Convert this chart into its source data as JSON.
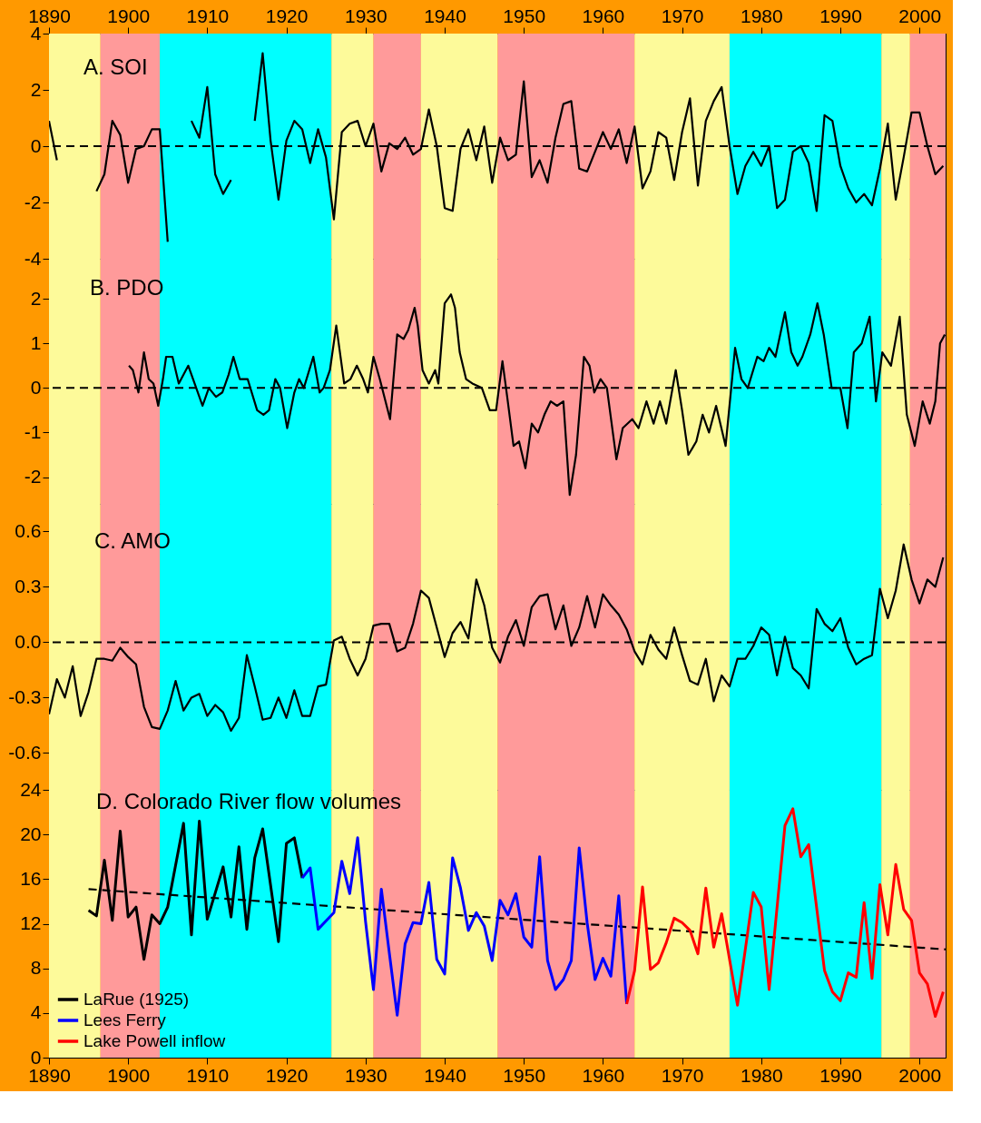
{
  "chart_data": [
    {
      "type": "line",
      "title": "A. SOI",
      "xlim": [
        1890,
        2003.3
      ],
      "x2lim": [
        1890,
        2003.3
      ],
      "x2ticks": [
        1890,
        1900,
        1910,
        1920,
        1930,
        1940,
        1950,
        1960,
        1970,
        1980,
        1990,
        2000
      ],
      "ylim": [
        -4,
        4
      ],
      "yticks": [
        -4,
        -2,
        0,
        2,
        4
      ],
      "tick_labels": "y",
      "x": [
        1890,
        1891,
        1892,
        1893,
        1894,
        1895,
        1896,
        1897,
        1898,
        1899,
        1900,
        1901,
        1902,
        1903,
        1904,
        1905,
        1906,
        1907,
        1908,
        1909,
        1910,
        1911,
        1912,
        1913,
        1914,
        1915,
        1916,
        1917,
        1918,
        1919,
        1920,
        1921,
        1922,
        1923,
        1924,
        1925,
        1926,
        1927,
        1928,
        1929,
        1930,
        1931,
        1932,
        1933,
        1934,
        1935,
        1936,
        1937,
        1938,
        1939,
        1940,
        1941,
        1942,
        1943,
        1944,
        1945,
        1946,
        1947,
        1948,
        1949,
        1950,
        1951,
        1952,
        1953,
        1954,
        1955,
        1956,
        1957,
        1958,
        1959,
        1960,
        1961,
        1962,
        1963,
        1964,
        1965,
        1966,
        1967,
        1968,
        1969,
        1970,
        1971,
        1972,
        1973,
        1974,
        1975,
        1976,
        1977,
        1978,
        1979,
        1980,
        1981,
        1982,
        1983,
        1984,
        1985,
        1986,
        1987,
        1988,
        1989,
        1990,
        1991,
        1992,
        1993,
        1994,
        1995,
        1996,
        1997,
        1998,
        1999,
        2000,
        2001,
        2002,
        2003
      ],
      "series": [
        {
          "color": "#000000",
          "values": [
            0.9,
            -0.5,
            null,
            null,
            null,
            null,
            -1.6,
            -1.0,
            0.9,
            0.4,
            -1.3,
            -0.1,
            0.0,
            0.6,
            0.6,
            -3.4,
            null,
            null,
            0.9,
            0.3,
            2.1,
            -1.0,
            -1.7,
            -1.2,
            null,
            null,
            0.9,
            3.3,
            0.2,
            -1.9,
            0.2,
            0.9,
            0.6,
            -0.6,
            0.6,
            -0.4,
            -2.6,
            0.5,
            0.8,
            0.9,
            0.0,
            0.8,
            -0.9,
            0.1,
            -0.1,
            0.3,
            -0.3,
            -0.1,
            1.3,
            0.0,
            -2.2,
            -2.3,
            -0.1,
            0.6,
            -0.5,
            0.7,
            -1.3,
            0.3,
            -0.5,
            -0.3,
            2.3,
            -1.1,
            -0.5,
            -1.3,
            0.3,
            1.5,
            1.6,
            -0.8,
            -0.9,
            -0.2,
            0.5,
            -0.1,
            0.6,
            -0.6,
            0.7,
            -1.5,
            -0.9,
            0.5,
            0.3,
            -1.2,
            0.5,
            1.7,
            -1.4,
            0.9,
            1.6,
            2.1,
            0.0,
            -1.7,
            -0.7,
            -0.2,
            -0.7,
            0.0,
            -2.2,
            -1.9,
            -0.2,
            0.0,
            -0.6,
            -2.3,
            1.1,
            0.9,
            -0.7,
            -1.5,
            -2.0,
            -1.7,
            -2.1,
            -0.8,
            0.8,
            -1.9,
            -0.4,
            1.2,
            1.2,
            0.0,
            -1.0,
            -0.7
          ]
        }
      ],
      "ref_lines": [
        {
          "axis": "y",
          "value": 0,
          "color": "#000000",
          "line_style": "dashed"
        }
      ],
      "bands": [
        {
          "axis": "x",
          "from": 1890,
          "to": 1896.5,
          "color": "#fdfa9a"
        },
        {
          "axis": "x",
          "from": 1896.5,
          "to": 1904,
          "color": "#ff9a9a"
        },
        {
          "axis": "x",
          "from": 1904,
          "to": 1925.7,
          "color": "#00ffff"
        },
        {
          "axis": "x",
          "from": 1925.7,
          "to": 1931,
          "color": "#fdfa9a"
        },
        {
          "axis": "x",
          "from": 1931,
          "to": 1937,
          "color": "#ff9a9a"
        },
        {
          "axis": "x",
          "from": 1937,
          "to": 1946.7,
          "color": "#fdfa9a"
        },
        {
          "axis": "x",
          "from": 1946.7,
          "to": 1964,
          "color": "#ff9a9a"
        },
        {
          "axis": "x",
          "from": 1964,
          "to": 1976,
          "color": "#fdfa9a"
        },
        {
          "axis": "x",
          "from": 1976,
          "to": 1995.2,
          "color": "#00ffff"
        },
        {
          "axis": "x",
          "from": 1995.2,
          "to": 1998.8,
          "color": "#fdfa9a"
        },
        {
          "axis": "x",
          "from": 1998.8,
          "to": 2003.3,
          "color": "#ff9a9a"
        }
      ]
    },
    {
      "type": "line",
      "title": "B. PDO",
      "xlim": [
        1890,
        2003.3
      ],
      "ylim": [
        -2.6,
        2.9
      ],
      "yticks": [
        -2,
        -1,
        0,
        1,
        2
      ],
      "tick_labels": "y",
      "series": [
        {
          "color": "#000000",
          "x": [
            1900.1,
            1900.6,
            1901.3,
            1902.0,
            1902.6,
            1903.2,
            1903.8,
            1904.4,
            1904.8,
            1905.6,
            1906.4,
            1907.6,
            1908.4,
            1909.4,
            1910.2,
            1911.1,
            1911.9,
            1912.7,
            1913.3,
            1914.1,
            1915.1,
            1916.3,
            1917.1,
            1917.8,
            1918.6,
            1919.2,
            1920.1,
            1921.0,
            1921.6,
            1922.2,
            1923.4,
            1924.2,
            1924.7,
            1925.5,
            1926.3,
            1927.3,
            1928.1,
            1928.9,
            1929.7,
            1930.3,
            1931.0,
            1931.8,
            1933.1,
            1934.0,
            1934.8,
            1935.4,
            1936.2,
            1936.6,
            1937.2,
            1938.0,
            1938.8,
            1939.2,
            1940.0,
            1940.8,
            1941.3,
            1941.9,
            1942.7,
            1943.5,
            1944.7,
            1945.7,
            1946.5,
            1947.3,
            1947.9,
            1948.7,
            1949.4,
            1950.2,
            1951.0,
            1951.8,
            1952.6,
            1953.4,
            1954.2,
            1955.0,
            1955.8,
            1956.6,
            1957.6,
            1958.3,
            1958.9,
            1959.7,
            1960.5,
            1961.7,
            1962.5,
            1963.7,
            1964.5,
            1965.5,
            1966.4,
            1967.2,
            1968.0,
            1969.2,
            1970.0,
            1970.8,
            1971.8,
            1972.6,
            1973.4,
            1974.3,
            1975.5,
            1976.7,
            1977.5,
            1978.3,
            1979.5,
            1980.3,
            1981.0,
            1981.8,
            1983.0,
            1983.8,
            1984.6,
            1985.2,
            1986.2,
            1987.1,
            1987.9,
            1988.9,
            1990.0,
            1990.9,
            1991.7,
            1992.7,
            1993.7,
            1994.5,
            1995.3,
            1996.4,
            1997.5,
            1998.4,
            1999.4,
            2000.4,
            2001.3,
            2002.0,
            2002.6,
            2003.2
          ],
          "values": [
            0.5,
            0.4,
            -0.1,
            0.8,
            0.2,
            0.1,
            -0.4,
            0.2,
            0.7,
            0.7,
            0.1,
            0.5,
            0.1,
            -0.4,
            0.0,
            -0.2,
            -0.1,
            0.3,
            0.7,
            0.2,
            0.2,
            -0.5,
            -0.6,
            -0.5,
            0.2,
            0.0,
            -0.9,
            -0.1,
            0.2,
            0.0,
            0.7,
            -0.1,
            0.0,
            0.4,
            1.4,
            0.1,
            0.2,
            0.5,
            0.2,
            -0.1,
            0.7,
            0.2,
            -0.7,
            1.2,
            1.1,
            1.3,
            1.8,
            1.4,
            0.4,
            0.1,
            0.4,
            0.1,
            1.9,
            2.1,
            1.8,
            0.8,
            0.2,
            0.1,
            0.0,
            -0.5,
            -0.5,
            0.6,
            -0.2,
            -1.3,
            -1.2,
            -1.8,
            -0.8,
            -1.0,
            -0.6,
            -0.3,
            -0.4,
            -0.3,
            -2.4,
            -1.5,
            0.7,
            0.5,
            -0.1,
            0.2,
            0.0,
            -1.6,
            -0.9,
            -0.7,
            -0.9,
            -0.3,
            -0.8,
            -0.3,
            -0.8,
            0.4,
            -0.5,
            -1.5,
            -1.2,
            -0.6,
            -1.0,
            -0.4,
            -1.3,
            0.9,
            0.2,
            0.0,
            0.7,
            0.6,
            0.9,
            0.7,
            1.7,
            0.8,
            0.5,
            0.7,
            1.2,
            1.9,
            1.2,
            0.0,
            0.0,
            -0.9,
            0.8,
            1.0,
            1.6,
            -0.3,
            0.8,
            0.5,
            1.6,
            -0.6,
            -1.3,
            -0.3,
            -0.8,
            -0.3,
            1.0,
            1.2
          ]
        }
      ],
      "ref_lines": [
        {
          "axis": "y",
          "value": 0,
          "color": "#000000",
          "line_style": "dashed"
        }
      ],
      "bands": [
        {
          "axis": "x",
          "from": 1890,
          "to": 1896.5,
          "color": "#fdfa9a"
        },
        {
          "axis": "x",
          "from": 1896.5,
          "to": 1904,
          "color": "#ff9a9a"
        },
        {
          "axis": "x",
          "from": 1904,
          "to": 1925.7,
          "color": "#00ffff"
        },
        {
          "axis": "x",
          "from": 1925.7,
          "to": 1931,
          "color": "#fdfa9a"
        },
        {
          "axis": "x",
          "from": 1931,
          "to": 1937,
          "color": "#ff9a9a"
        },
        {
          "axis": "x",
          "from": 1937,
          "to": 1946.7,
          "color": "#fdfa9a"
        },
        {
          "axis": "x",
          "from": 1946.7,
          "to": 1964,
          "color": "#ff9a9a"
        },
        {
          "axis": "x",
          "from": 1964,
          "to": 1976,
          "color": "#fdfa9a"
        },
        {
          "axis": "x",
          "from": 1976,
          "to": 1995.2,
          "color": "#00ffff"
        },
        {
          "axis": "x",
          "from": 1995.2,
          "to": 1998.8,
          "color": "#fdfa9a"
        },
        {
          "axis": "x",
          "from": 1998.8,
          "to": 2003.3,
          "color": "#ff9a9a"
        }
      ]
    },
    {
      "type": "line",
      "title": "C. AMO",
      "xlim": [
        1890,
        2003.3
      ],
      "ylim": [
        -0.8,
        0.75
      ],
      "yticks": [
        -0.6,
        -0.3,
        {
          "value": 0,
          "label": "0.0"
        },
        0.3,
        0.6
      ],
      "tick_labels": "y",
      "x": [
        1890,
        1891,
        1892,
        1893,
        1894,
        1895,
        1896,
        1897,
        1898,
        1899,
        1900,
        1901,
        1902,
        1903,
        1904,
        1905,
        1906,
        1907,
        1908,
        1909,
        1910,
        1911,
        1912,
        1913,
        1914,
        1915,
        1916,
        1917,
        1918,
        1919,
        1920,
        1921,
        1922,
        1923,
        1924,
        1925,
        1926,
        1927,
        1928,
        1929,
        1930,
        1931,
        1932,
        1933,
        1934,
        1935,
        1936,
        1937,
        1938,
        1939,
        1940,
        1941,
        1942,
        1943,
        1944,
        1945,
        1946,
        1947,
        1948,
        1949,
        1950,
        1951,
        1952,
        1953,
        1954,
        1955,
        1956,
        1957,
        1958,
        1959,
        1960,
        1961,
        1962,
        1963,
        1964,
        1965,
        1966,
        1967,
        1968,
        1969,
        1970,
        1971,
        1972,
        1973,
        1974,
        1975,
        1976,
        1977,
        1978,
        1979,
        1980,
        1981,
        1982,
        1983,
        1984,
        1985,
        1986,
        1987,
        1988,
        1989,
        1990,
        1991,
        1992,
        1993,
        1994,
        1995,
        1996,
        1997,
        1998,
        1999,
        2000,
        2001,
        2002,
        2003
      ],
      "series": [
        {
          "color": "#000000",
          "values": [
            -0.39,
            -0.2,
            -0.3,
            -0.13,
            -0.4,
            -0.27,
            -0.09,
            -0.09,
            -0.1,
            -0.03,
            -0.08,
            -0.12,
            -0.35,
            -0.46,
            -0.47,
            -0.37,
            -0.21,
            -0.37,
            -0.3,
            -0.28,
            -0.4,
            -0.34,
            -0.38,
            -0.48,
            -0.41,
            -0.07,
            -0.24,
            -0.42,
            -0.41,
            -0.3,
            -0.41,
            -0.26,
            -0.4,
            -0.4,
            -0.24,
            -0.23,
            0.01,
            0.03,
            -0.09,
            -0.18,
            -0.09,
            0.09,
            0.1,
            0.1,
            -0.05,
            -0.03,
            0.1,
            0.28,
            0.24,
            0.08,
            -0.08,
            0.05,
            0.11,
            0.02,
            0.34,
            0.2,
            -0.03,
            -0.11,
            0.03,
            0.12,
            -0.02,
            0.19,
            0.25,
            0.26,
            0.07,
            0.2,
            -0.02,
            0.08,
            0.25,
            0.08,
            0.26,
            0.2,
            0.15,
            0.07,
            -0.05,
            -0.12,
            0.04,
            -0.04,
            -0.09,
            0.08,
            -0.07,
            -0.21,
            -0.23,
            -0.09,
            -0.32,
            -0.18,
            -0.24,
            -0.09,
            -0.09,
            -0.02,
            0.08,
            0.04,
            -0.18,
            0.03,
            -0.14,
            -0.18,
            -0.25,
            0.18,
            0.1,
            0.06,
            0.13,
            -0.03,
            -0.12,
            -0.09,
            -0.07,
            0.29,
            0.13,
            0.28,
            0.53,
            0.34,
            0.21,
            0.34,
            0.3,
            0.46
          ]
        }
      ],
      "ref_lines": [
        {
          "axis": "y",
          "value": 0,
          "color": "#000000",
          "line_style": "dashed"
        }
      ],
      "bands": [
        {
          "axis": "x",
          "from": 1890,
          "to": 1896.5,
          "color": "#fdfa9a"
        },
        {
          "axis": "x",
          "from": 1896.5,
          "to": 1904,
          "color": "#ff9a9a"
        },
        {
          "axis": "x",
          "from": 1904,
          "to": 1925.7,
          "color": "#00ffff"
        },
        {
          "axis": "x",
          "from": 1925.7,
          "to": 1931,
          "color": "#fdfa9a"
        },
        {
          "axis": "x",
          "from": 1931,
          "to": 1937,
          "color": "#ff9a9a"
        },
        {
          "axis": "x",
          "from": 1937,
          "to": 1946.7,
          "color": "#fdfa9a"
        },
        {
          "axis": "x",
          "from": 1946.7,
          "to": 1964,
          "color": "#ff9a9a"
        },
        {
          "axis": "x",
          "from": 1964,
          "to": 1976,
          "color": "#fdfa9a"
        },
        {
          "axis": "x",
          "from": 1976,
          "to": 1995.2,
          "color": "#00ffff"
        },
        {
          "axis": "x",
          "from": 1995.2,
          "to": 1998.8,
          "color": "#fdfa9a"
        },
        {
          "axis": "x",
          "from": 1998.8,
          "to": 2003.3,
          "color": "#ff9a9a"
        }
      ]
    },
    {
      "type": "line",
      "title": "D. Colorado River flow volumes",
      "xlim": [
        1890,
        2003.3
      ],
      "xticks": [
        1890,
        1900,
        1910,
        1920,
        1930,
        1940,
        1950,
        1960,
        1970,
        1980,
        1990,
        2000
      ],
      "ylim": [
        0,
        24
      ],
      "yticks": [
        0,
        4,
        8,
        12,
        16,
        20,
        24
      ],
      "legend": "bottom left",
      "series": [
        {
          "name": "LaRue (1925)",
          "color": "#000000",
          "x": [
            1895,
            1896,
            1897,
            1898,
            1899,
            1900,
            1901,
            1902,
            1903,
            1904,
            1905,
            1907,
            1908,
            1909,
            1910,
            1912,
            1913,
            1914,
            1915,
            1916,
            1917,
            1919,
            1920,
            1921,
            1922
          ],
          "values": [
            13.2,
            12.7,
            17.7,
            12.3,
            20.3,
            12.6,
            13.5,
            8.8,
            12.8,
            12.0,
            13.5,
            21.0,
            11.0,
            21.2,
            12.4,
            17.1,
            12.6,
            18.9,
            11.5,
            17.9,
            20.5,
            10.4,
            19.2,
            19.7,
            16.1
          ]
        },
        {
          "name": "Lees Ferry",
          "color": "#0000ff",
          "x": [
            1922,
            1923,
            1924,
            1926,
            1927,
            1928,
            1929,
            1930,
            1931,
            1932,
            1933,
            1934,
            1935,
            1936,
            1937,
            1938,
            1939,
            1940,
            1941,
            1942,
            1943,
            1944,
            1945,
            1946,
            1947,
            1948,
            1949,
            1950,
            1951,
            1952,
            1953,
            1954,
            1955,
            1956,
            1957,
            1958,
            1959,
            1960,
            1961,
            1962,
            1963
          ],
          "values": [
            16.1,
            17.0,
            11.5,
            13.0,
            17.6,
            14.7,
            19.7,
            12.2,
            6.1,
            15.1,
            9.4,
            3.8,
            10.2,
            12.1,
            12.0,
            15.7,
            8.8,
            7.5,
            17.9,
            15.2,
            11.4,
            13.0,
            11.8,
            8.7,
            14.1,
            12.8,
            14.7,
            10.8,
            9.9,
            18.0,
            8.7,
            6.1,
            7.0,
            8.7,
            18.8,
            12.1,
            7.0,
            8.9,
            7.3,
            14.5,
            4.8
          ]
        },
        {
          "name": "Lake Powell inflow",
          "color": "#ff0000",
          "x": [
            1963,
            1964,
            1965,
            1966,
            1967,
            1968,
            1969,
            1970,
            1971,
            1972,
            1973,
            1974,
            1975,
            1977,
            1979,
            1980,
            1981,
            1983,
            1984,
            1985,
            1986,
            1988,
            1989,
            1990,
            1991,
            1992,
            1993,
            1994,
            1995,
            1996,
            1997,
            1998,
            1999,
            2000,
            2001,
            2002,
            2003
          ],
          "values": [
            4.8,
            7.8,
            15.3,
            7.9,
            8.5,
            10.3,
            12.5,
            12.1,
            11.4,
            9.3,
            15.2,
            9.9,
            12.9,
            4.7,
            14.8,
            13.5,
            6.1,
            20.8,
            22.3,
            18.0,
            19.1,
            7.8,
            5.9,
            5.1,
            7.6,
            7.2,
            13.9,
            7.1,
            15.5,
            11.0,
            17.3,
            13.3,
            12.3,
            7.6,
            6.6,
            3.7,
            5.9
          ]
        },
        {
          "type": "line",
          "color": "#000000",
          "line_style": "dashed",
          "x": [
            1895,
            2003.3
          ],
          "values": [
            15.1,
            9.7
          ]
        }
      ],
      "bands": [
        {
          "axis": "x",
          "from": 1890,
          "to": 1896.5,
          "color": "#fdfa9a"
        },
        {
          "axis": "x",
          "from": 1896.5,
          "to": 1904,
          "color": "#ff9a9a"
        },
        {
          "axis": "x",
          "from": 1904,
          "to": 1925.7,
          "color": "#00ffff"
        },
        {
          "axis": "x",
          "from": 1925.7,
          "to": 1931,
          "color": "#fdfa9a"
        },
        {
          "axis": "x",
          "from": 1931,
          "to": 1937,
          "color": "#ff9a9a"
        },
        {
          "axis": "x",
          "from": 1937,
          "to": 1946.7,
          "color": "#fdfa9a"
        },
        {
          "axis": "x",
          "from": 1946.7,
          "to": 1964,
          "color": "#ff9a9a"
        },
        {
          "axis": "x",
          "from": 1964,
          "to": 1976,
          "color": "#fdfa9a"
        },
        {
          "axis": "x",
          "from": 1976,
          "to": 1995.2,
          "color": "#00ffff"
        },
        {
          "axis": "x",
          "from": 1995.2,
          "to": 1998.8,
          "color": "#fdfa9a"
        },
        {
          "axis": "x",
          "from": 1998.8,
          "to": 2003.3,
          "color": "#ff9a9a"
        }
      ]
    }
  ]
}
